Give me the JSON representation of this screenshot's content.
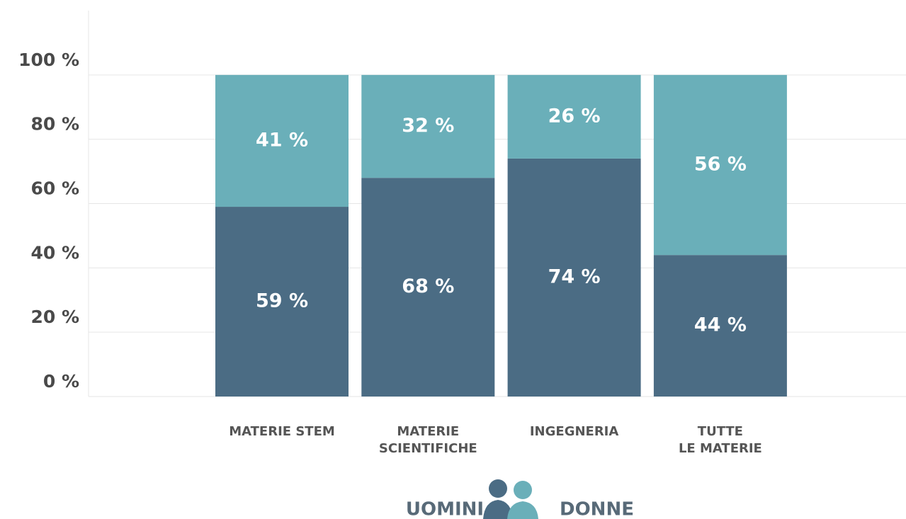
{
  "chart_data": {
    "type": "stacked-bar",
    "categories": [
      "MATERIE STEM",
      "MATERIE\nSCIENTIFICHE",
      "INGEGNERIA",
      "TUTTE\nLE MATERIE"
    ],
    "series": [
      {
        "name": "UOMINI",
        "color": "#4b6c84",
        "values": [
          59,
          68,
          74,
          44
        ],
        "value_labels": [
          "59 %",
          "68 %",
          "74 %",
          "44 %"
        ]
      },
      {
        "name": "DONNE",
        "color": "#6aafb9",
        "values": [
          41,
          32,
          26,
          56
        ],
        "value_labels": [
          "41 %",
          "32 %",
          "26 %",
          "56 %"
        ]
      }
    ],
    "ylim": [
      0,
      120
    ],
    "yticks": [
      {
        "value": 0,
        "label": "0 %"
      },
      {
        "value": 20,
        "label": "20 %"
      },
      {
        "value": 40,
        "label": "40 %"
      },
      {
        "value": 60,
        "label": "60 %"
      },
      {
        "value": 80,
        "label": "80 %"
      },
      {
        "value": 100,
        "label": "100 %"
      }
    ],
    "grid": true
  }
}
